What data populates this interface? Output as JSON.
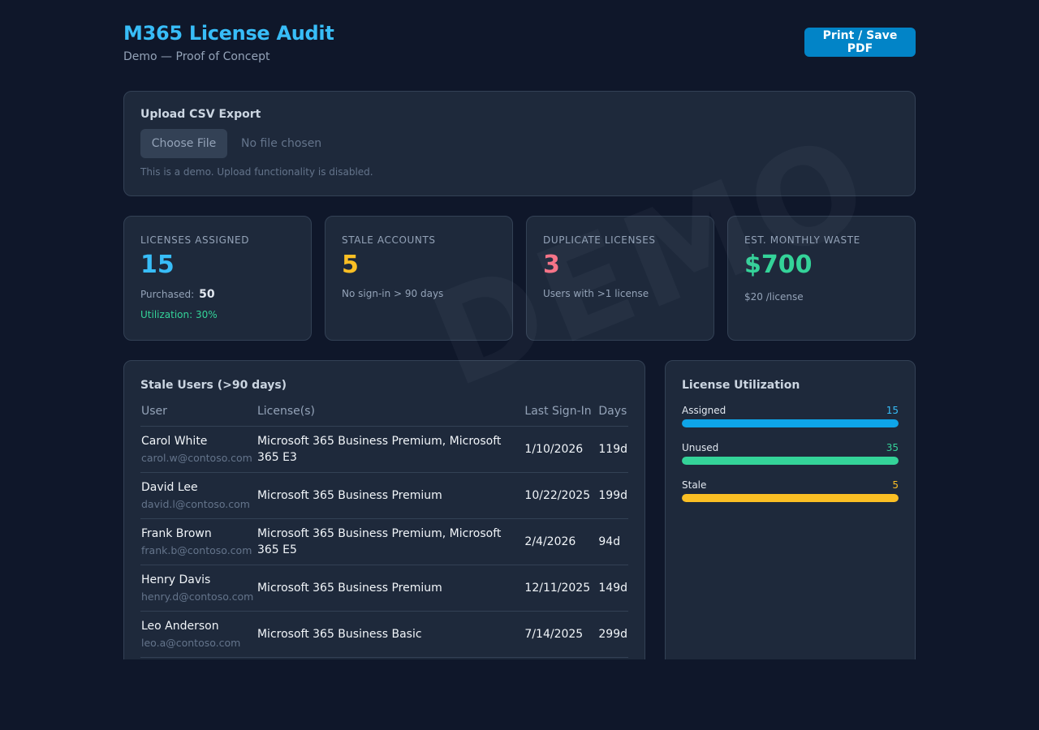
{
  "header": {
    "title": "M365 License Audit",
    "subtitle": "Demo — Proof of Concept",
    "print_label": "Print / Save PDF"
  },
  "watermark": "DEMO",
  "upload": {
    "title": "Upload CSV Export",
    "choose_label": "Choose File",
    "no_file": "No file chosen",
    "note": "This is a demo. Upload functionality is disabled."
  },
  "cards": {
    "assigned": {
      "label": "Licenses Assigned",
      "value": "15",
      "purchased_label": "Purchased:",
      "purchased_value": "50",
      "utilization": "Utilization: 30%"
    },
    "stale": {
      "label": "Stale Accounts",
      "value": "5",
      "sub": "No sign-in > 90 days"
    },
    "duplicate": {
      "label": "Duplicate Licenses",
      "value": "3",
      "sub": "Users with >1 license"
    },
    "waste": {
      "label": "Est. Monthly Waste",
      "value": "$700",
      "sub": "$20 /license"
    }
  },
  "stale_users": {
    "title": "Stale Users (>90 days)",
    "columns": [
      "User",
      "License(s)",
      "Last Sign-In",
      "Days"
    ],
    "rows": [
      {
        "name": "Carol White",
        "email": "carol.w@contoso.com",
        "licenses": "Microsoft 365 Business Premium, Microsoft 365 E3",
        "last": "1/10/2026",
        "days": "119d"
      },
      {
        "name": "David Lee",
        "email": "david.l@contoso.com",
        "licenses": "Microsoft 365 Business Premium",
        "last": "10/22/2025",
        "days": "199d"
      },
      {
        "name": "Frank Brown",
        "email": "frank.b@contoso.com",
        "licenses": "Microsoft 365 Business Premium, Microsoft 365 E5",
        "last": "2/4/2026",
        "days": "94d"
      },
      {
        "name": "Henry Davis",
        "email": "henry.d@contoso.com",
        "licenses": "Microsoft 365 Business Premium",
        "last": "12/11/2025",
        "days": "149d"
      },
      {
        "name": "Leo Anderson",
        "email": "leo.a@contoso.com",
        "licenses": "Microsoft 365 Business Basic",
        "last": "7/14/2025",
        "days": "299d"
      }
    ]
  },
  "utilization": {
    "title": "License Utilization",
    "bars": [
      {
        "label": "Assigned",
        "value": "15",
        "fill": 1.0,
        "color": "#0ea5e9",
        "text_color": "#38bdf8"
      },
      {
        "label": "Unused",
        "value": "35",
        "fill": 1.0,
        "color": "#34d399",
        "text_color": "#34d399"
      },
      {
        "label": "Stale",
        "value": "5",
        "fill": 1.0,
        "color": "#fbbf24",
        "text_color": "#fbbf24"
      }
    ]
  },
  "colors": {
    "accent": "#38bdf8",
    "assigned": "#38bdf8",
    "stale": "#fbbf24",
    "duplicate": "#fb7185",
    "waste": "#34d399"
  }
}
